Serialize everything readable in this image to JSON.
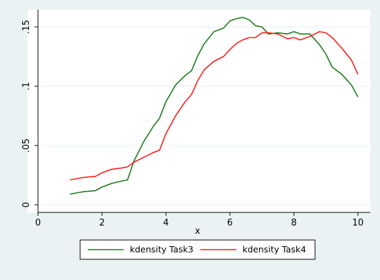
{
  "colors": {
    "background": "#eaf2f3",
    "plot_background": "#ffffff",
    "grid": "#eaf2f3",
    "axis": "#000000",
    "series_1": "#1a7a1a",
    "series_2": "#ff1a1a"
  },
  "chart_data": {
    "type": "line",
    "title": "",
    "xlabel": "x",
    "ylabel": "",
    "xlim": [
      0,
      10
    ],
    "ylim": [
      0,
      0.16
    ],
    "x_ticks": [
      {
        "value": 0,
        "label": "0"
      },
      {
        "value": 2,
        "label": "2"
      },
      {
        "value": 4,
        "label": "4"
      },
      {
        "value": 6,
        "label": "6"
      },
      {
        "value": 8,
        "label": "8"
      },
      {
        "value": 10,
        "label": "10"
      }
    ],
    "y_ticks": [
      {
        "value": 0,
        "label": "0"
      },
      {
        "value": 0.05,
        "label": ".05"
      },
      {
        "value": 0.1,
        "label": ".1"
      },
      {
        "value": 0.15,
        "label": ".15"
      }
    ],
    "grid": true,
    "legend_position": "bottom",
    "series": [
      {
        "name": "kdensity Task3",
        "color": "#1a7a1a",
        "x": [
          1,
          1.4,
          1.8,
          2.0,
          2.3,
          2.6,
          2.8,
          3.0,
          3.3,
          3.6,
          3.8,
          4.0,
          4.3,
          4.6,
          4.8,
          5.0,
          5.2,
          5.5,
          5.8,
          6.0,
          6.2,
          6.4,
          6.6,
          6.8,
          7.0,
          7.2,
          7.5,
          7.8,
          8.0,
          8.2,
          8.5,
          8.8,
          9.0,
          9.2,
          9.5,
          9.8,
          10.0
        ],
        "values": [
          0.009,
          0.011,
          0.012,
          0.015,
          0.018,
          0.02,
          0.021,
          0.037,
          0.053,
          0.066,
          0.073,
          0.087,
          0.101,
          0.109,
          0.113,
          0.126,
          0.136,
          0.146,
          0.149,
          0.155,
          0.157,
          0.158,
          0.156,
          0.151,
          0.15,
          0.144,
          0.145,
          0.144,
          0.146,
          0.144,
          0.144,
          0.135,
          0.127,
          0.116,
          0.11,
          0.101,
          0.091
        ]
      },
      {
        "name": "kdensity Task4",
        "color": "#ff1a1a",
        "x": [
          1,
          1.4,
          1.8,
          2.0,
          2.3,
          2.6,
          2.8,
          3.0,
          3.3,
          3.6,
          3.8,
          4.0,
          4.3,
          4.6,
          4.8,
          5.0,
          5.2,
          5.5,
          5.8,
          6.0,
          6.2,
          6.4,
          6.6,
          6.8,
          7.0,
          7.2,
          7.5,
          7.8,
          8.0,
          8.2,
          8.5,
          8.8,
          9.0,
          9.2,
          9.5,
          9.8,
          10.0
        ],
        "values": [
          0.021,
          0.023,
          0.024,
          0.027,
          0.03,
          0.031,
          0.032,
          0.036,
          0.04,
          0.044,
          0.046,
          0.06,
          0.075,
          0.087,
          0.093,
          0.105,
          0.114,
          0.121,
          0.125,
          0.131,
          0.136,
          0.139,
          0.141,
          0.141,
          0.145,
          0.145,
          0.144,
          0.14,
          0.141,
          0.139,
          0.142,
          0.146,
          0.145,
          0.141,
          0.132,
          0.122,
          0.11
        ]
      }
    ]
  }
}
